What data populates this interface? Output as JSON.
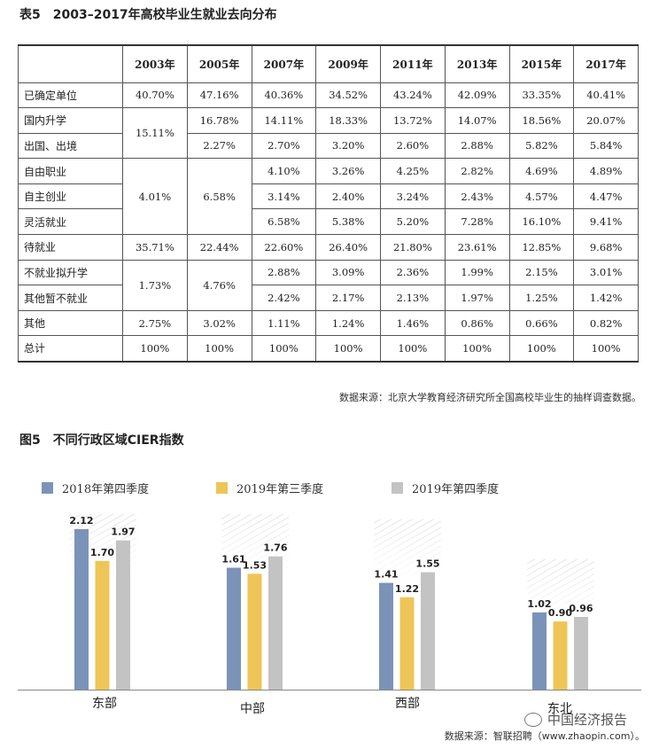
{
  "table": {
    "title": "表5　2003–2017年高校毕业生就业去向分布",
    "years": [
      "2003年",
      "2005年",
      "2007年",
      "2009年",
      "2011年",
      "2013年",
      "2015年",
      "2017年"
    ],
    "source": "数据来源：北京大学教育经济研究所全国高校毕业生的抽样调查数据。",
    "rows": [
      {
        "label": "已确定单位",
        "cells": [
          {
            "v": "40.70%"
          },
          {
            "v": "47.16%"
          },
          {
            "v": "40.36%"
          },
          {
            "v": "34.52%"
          },
          {
            "v": "43.24%"
          },
          {
            "v": "42.09%"
          },
          {
            "v": "33.35%"
          },
          {
            "v": "40.41%"
          }
        ]
      },
      {
        "label": "国内升学",
        "cells": [
          {
            "v": "15.11%",
            "rs": 2
          },
          {
            "v": "16.78%"
          },
          {
            "v": "14.11%"
          },
          {
            "v": "18.33%"
          },
          {
            "v": "13.72%"
          },
          {
            "v": "14.07%"
          },
          {
            "v": "18.56%"
          },
          {
            "v": "20.07%"
          }
        ]
      },
      {
        "label": "出国、出境",
        "cells": [
          {
            "v": "2.27%"
          },
          {
            "v": "2.70%"
          },
          {
            "v": "3.20%"
          },
          {
            "v": "2.60%"
          },
          {
            "v": "2.88%"
          },
          {
            "v": "5.82%"
          },
          {
            "v": "5.84%"
          }
        ]
      },
      {
        "label": "自由职业",
        "cells": [
          {
            "v": "4.01%",
            "rs": 3
          },
          {
            "v": "6.58%",
            "rs": 3
          },
          {
            "v": "4.10%"
          },
          {
            "v": "3.26%"
          },
          {
            "v": "4.25%"
          },
          {
            "v": "2.82%"
          },
          {
            "v": "4.69%"
          },
          {
            "v": "4.89%"
          }
        ]
      },
      {
        "label": "自主创业",
        "cells": [
          {
            "v": "3.14%"
          },
          {
            "v": "2.40%"
          },
          {
            "v": "3.24%"
          },
          {
            "v": "2.43%"
          },
          {
            "v": "4.57%"
          },
          {
            "v": "4.47%"
          }
        ]
      },
      {
        "label": "灵活就业",
        "cells": [
          {
            "v": "6.58%"
          },
          {
            "v": "5.38%"
          },
          {
            "v": "5.20%"
          },
          {
            "v": "7.28%"
          },
          {
            "v": "16.10%"
          },
          {
            "v": "9.41%"
          }
        ]
      },
      {
        "label": "待就业",
        "cells": [
          {
            "v": "35.71%"
          },
          {
            "v": "22.44%"
          },
          {
            "v": "22.60%"
          },
          {
            "v": "26.40%"
          },
          {
            "v": "21.80%"
          },
          {
            "v": "23.61%"
          },
          {
            "v": "12.85%"
          },
          {
            "v": "9.68%"
          }
        ]
      },
      {
        "label": "不就业拟升学",
        "cells": [
          {
            "v": "1.73%",
            "rs": 2
          },
          {
            "v": "4.76%",
            "rs": 2
          },
          {
            "v": "2.88%"
          },
          {
            "v": "3.09%"
          },
          {
            "v": "2.36%"
          },
          {
            "v": "1.99%"
          },
          {
            "v": "2.15%"
          },
          {
            "v": "3.01%"
          }
        ]
      },
      {
        "label": "其他暂不就业",
        "cells": [
          {
            "v": "2.42%"
          },
          {
            "v": "2.17%"
          },
          {
            "v": "2.13%"
          },
          {
            "v": "1.97%"
          },
          {
            "v": "1.25%"
          },
          {
            "v": "1.42%"
          }
        ]
      },
      {
        "label": "其他",
        "cells": [
          {
            "v": "2.75%"
          },
          {
            "v": "3.02%"
          },
          {
            "v": "1.11%"
          },
          {
            "v": "1.24%"
          },
          {
            "v": "1.46%"
          },
          {
            "v": "0.86%"
          },
          {
            "v": "0.66%"
          },
          {
            "v": "0.82%"
          }
        ]
      },
      {
        "label": "总计",
        "cells": [
          {
            "v": "100%"
          },
          {
            "v": "100%"
          },
          {
            "v": "100%"
          },
          {
            "v": "100%"
          },
          {
            "v": "100%"
          },
          {
            "v": "100%"
          },
          {
            "v": "100%"
          },
          {
            "v": "100%"
          }
        ]
      }
    ]
  },
  "figure": {
    "title": "图5　不同行政区域CIER指数",
    "source": "数据来源：智联招聘（www.zhaopin.com）。",
    "watermark": "中国经济报告"
  },
  "chart_data": {
    "type": "bar",
    "title": "图5　不同行政区域CIER指数",
    "categories": [
      "东部",
      "中部",
      "西部",
      "东北"
    ],
    "series": [
      {
        "name": "2018年第四季度",
        "values": [
          2.12,
          1.61,
          1.41,
          1.02
        ],
        "color": "#7b93b8"
      },
      {
        "name": "2019年第三季度",
        "values": [
          1.7,
          1.53,
          1.22,
          0.9
        ],
        "color": "#eec557"
      },
      {
        "name": "2019年第四季度",
        "values": [
          1.97,
          1.76,
          1.55,
          0.96
        ],
        "color": "#c3c3c3"
      }
    ],
    "value_labels": [
      [
        "2.12",
        "1.61",
        "1.41",
        "1.02"
      ],
      [
        "1.70",
        "1.53",
        "1.22",
        "0.90"
      ],
      [
        "1.97",
        "1.76",
        "1.55",
        "0.96"
      ]
    ],
    "ylim": [
      0,
      2.4
    ],
    "grid": false,
    "legend": "top-left"
  }
}
